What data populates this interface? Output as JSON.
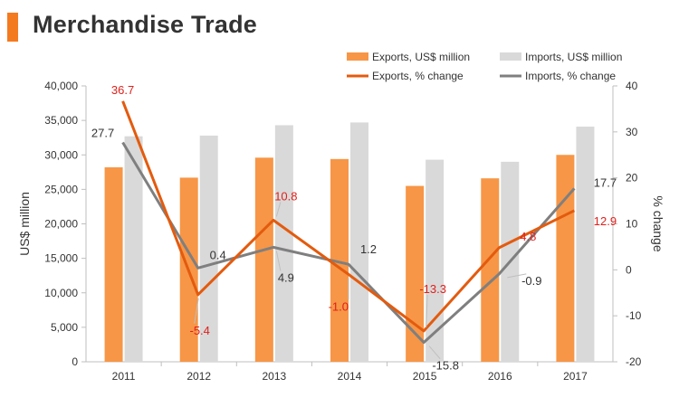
{
  "title": "Merchandise Trade",
  "colors": {
    "accent": "#F47A20",
    "exports_bar": "#F79646",
    "imports_bar": "#D9D9D9",
    "exports_line": "#E35B0E",
    "imports_line": "#7F7F7F",
    "exports_label": "#E0201B",
    "imports_label": "#333333"
  },
  "chart_data": {
    "type": "bar",
    "categories": [
      "2011",
      "2012",
      "2013",
      "2014",
      "2015",
      "2016",
      "2017"
    ],
    "series": [
      {
        "name": "Exports, US$ million",
        "type": "bar",
        "axis": "left",
        "values": [
          28200,
          26700,
          29600,
          29400,
          25500,
          26600,
          30000
        ]
      },
      {
        "name": "Imports, US$ million",
        "type": "bar",
        "axis": "left",
        "values": [
          32700,
          32800,
          34300,
          34700,
          29300,
          29000,
          34100
        ]
      },
      {
        "name": "Exports, % change",
        "type": "line",
        "axis": "right",
        "values": [
          36.7,
          -5.4,
          10.8,
          -1.0,
          -13.3,
          4.8,
          12.9
        ],
        "labels": [
          "36.7",
          "-5.4",
          "10.8",
          "-1.0",
          "-13.3",
          "4.8",
          "12.9"
        ]
      },
      {
        "name": "Imports, % change",
        "type": "line",
        "axis": "right",
        "values": [
          27.7,
          0.4,
          4.9,
          1.2,
          -15.8,
          -0.9,
          17.7
        ],
        "labels": [
          "27.7",
          "0.4",
          "4.9",
          "1.2",
          "-15.8",
          "-0.9",
          "17.7"
        ]
      }
    ],
    "ylabel": "US$ million",
    "y2label": "% change",
    "ylim": [
      0,
      40000
    ],
    "y2lim": [
      -20,
      40
    ],
    "yticks": [
      "0",
      "5,000",
      "10,000",
      "15,000",
      "20,000",
      "25,000",
      "30,000",
      "35,000",
      "40,000"
    ],
    "y2ticks": [
      "-20",
      "-10",
      "0",
      "10",
      "20",
      "30",
      "40"
    ],
    "grid": false,
    "legend": "top-right"
  }
}
